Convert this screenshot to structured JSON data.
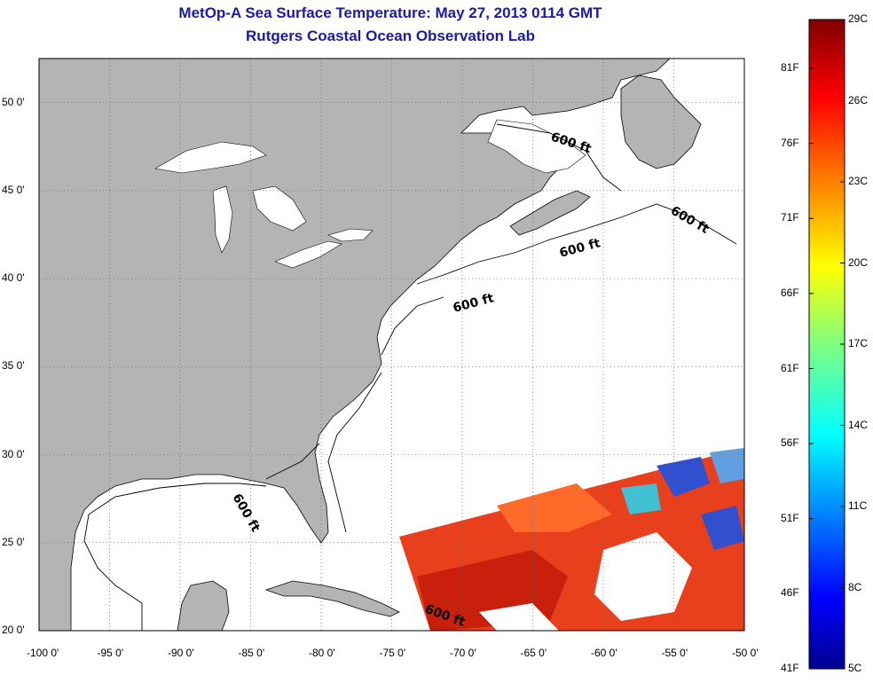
{
  "title": "MetOp-A Sea Surface Temperature:  May 27, 2013 0114 GMT",
  "subtitle": "Rutgers Coastal Ocean Observation Lab",
  "map": {
    "lon_range": [
      -100,
      -50
    ],
    "lat_range": [
      20,
      52.5
    ],
    "lon_ticks": [
      {
        "value": -100,
        "label": "-100 0'"
      },
      {
        "value": -95,
        "label": "-95 0'"
      },
      {
        "value": -90,
        "label": "-90 0'"
      },
      {
        "value": -85,
        "label": "-85 0'"
      },
      {
        "value": -80,
        "label": "-80 0'"
      },
      {
        "value": -75,
        "label": "-75 0'"
      },
      {
        "value": -70,
        "label": "-70 0'"
      },
      {
        "value": -65,
        "label": "-65 0'"
      },
      {
        "value": -60,
        "label": "-60 0'"
      },
      {
        "value": -55,
        "label": "-55 0'"
      },
      {
        "value": -50,
        "label": "-50 0'"
      }
    ],
    "lat_ticks": [
      {
        "value": 50,
        "label": "50 0'"
      },
      {
        "value": 45,
        "label": "45 0'"
      },
      {
        "value": 40,
        "label": "40 0'"
      },
      {
        "value": 35,
        "label": "35 0'"
      },
      {
        "value": 30,
        "label": "30 0'"
      },
      {
        "value": 25,
        "label": "25 0'"
      },
      {
        "value": 20,
        "label": "20 0'"
      }
    ],
    "land_color": "#b4b4b4",
    "grid": true,
    "contour_labels": [
      "600 ft",
      "600 ft",
      "600 ft",
      "600 ft",
      "600 ft",
      "600 ft"
    ]
  },
  "colorbar": {
    "range_c": [
      5,
      29
    ],
    "celsius_labels": [
      "29C",
      "26C",
      "23C",
      "20C",
      "17C",
      "14C",
      "11C",
      "8C",
      "5C"
    ],
    "fahrenheit_labels": [
      "81F",
      "76F",
      "71F",
      "66F",
      "61F",
      "56F",
      "51F",
      "46F",
      "41F"
    ],
    "colors": [
      "#00008f",
      "#0000ff",
      "#0080ff",
      "#00ffff",
      "#80ff80",
      "#ffff00",
      "#ff8000",
      "#ff0000",
      "#800000"
    ]
  }
}
